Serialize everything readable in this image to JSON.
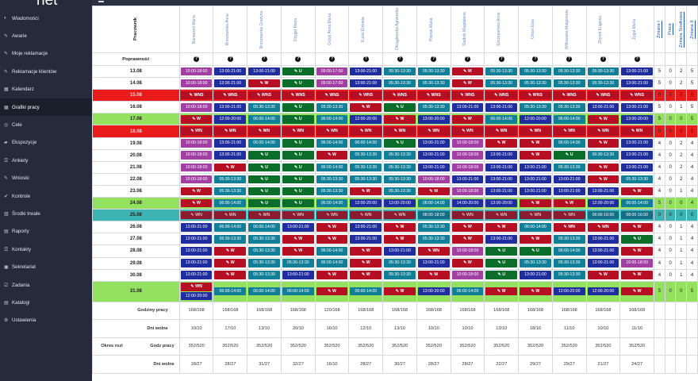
{
  "logo": "net",
  "sidebar": [
    {
      "icon": "gauge-icon",
      "glyph": "◐",
      "label": "Wiadomości"
    },
    {
      "icon": "wrench-icon",
      "glyph": "✎",
      "label": "Awarie"
    },
    {
      "icon": "edit-icon",
      "glyph": "✎",
      "label": "Moje reklamacje"
    },
    {
      "icon": "edit-icon",
      "glyph": "✎",
      "label": "Reklamacje klientów"
    },
    {
      "icon": "calendar-icon",
      "glyph": "▦",
      "label": "Kalendarz"
    },
    {
      "icon": "calendar-icon",
      "glyph": "▦",
      "label": "Grafiki pracy",
      "active": true
    },
    {
      "icon": "target-icon",
      "glyph": "◎",
      "label": "Cele"
    },
    {
      "icon": "car-icon",
      "glyph": "▰",
      "label": "Ekspozycje"
    },
    {
      "icon": "list-icon",
      "glyph": "☰",
      "label": "Ankiety"
    },
    {
      "icon": "edit-icon",
      "glyph": "✎",
      "label": "Wnioski"
    },
    {
      "icon": "check-icon",
      "glyph": "✔",
      "label": "Kontrole"
    },
    {
      "icon": "building-icon",
      "glyph": "▥",
      "label": "Środki trwałe"
    },
    {
      "icon": "chart-icon",
      "glyph": "▤",
      "label": "Raporty"
    },
    {
      "icon": "contacts-icon",
      "glyph": "☰",
      "label": "Kontakty"
    },
    {
      "icon": "briefcase-icon",
      "glyph": "▣",
      "label": "Sekretariat"
    },
    {
      "icon": "tasks-icon",
      "glyph": "☑",
      "label": "Zadania"
    },
    {
      "icon": "folder-icon",
      "glyph": "▤",
      "label": "Katalogi"
    },
    {
      "icon": "gear-icon",
      "glyph": "⚙",
      "label": "Ustawienia"
    }
  ],
  "grid": {
    "pracownik_label": "Pracownik",
    "poprawnosc_label": "Poprawność",
    "question_glyph": "?",
    "employees": [
      "Banaszek Maria",
      "Brzozowska Anna",
      "Brzozowska Grażyna",
      "Dżygeł Maria",
      "Grzyb Anna Maria",
      "Kubis Elżbieta",
      "Okrągłowska Agnieszka",
      "Pitorak Maria",
      "Stadnik Magdalena",
      "Szczepańska Anna",
      "Urban Ewa",
      "Wilkowska Małgorzata",
      "Zbyrek Eugenia",
      "Żygał Maria"
    ],
    "stat_headers": [
      "Zmiana I",
      "Praca",
      "Zmiana Środkowa",
      "Zmiana II"
    ],
    "rows": [
      {
        "date": "13.08",
        "style": "",
        "cells": [
          "1:10:00-18:00",
          "2:13:00-21:00",
          "2:13:00-21:00",
          "5:U",
          "1:09:00-17:00",
          "2:13:00-21:00",
          "3:05:30-13:30",
          "3:05:30-13:30",
          "4:W",
          "3:05:30-13:30",
          "3:05:30-13:30",
          "3:05:30-13:30",
          "3:05:30-13:30",
          "2:13:00-21:00"
        ],
        "stats": [
          "5",
          "0",
          "2",
          "5"
        ]
      },
      {
        "date": "14.08",
        "style": "",
        "cells": [
          "1:10:00-18:00",
          "2:13:00-21:00",
          "4:W",
          "5:U",
          "1:09:00-17:00",
          "2:13:00-21:00",
          "3:05:30-13:30",
          "3:05:30-13:30",
          "4:W",
          "3:05:30-13:30",
          "3:05:30-13:30",
          "3:05:30-13:30",
          "3:05:30-13:30",
          "2:13:00-21:00"
        ],
        "stats": [
          "5",
          "0",
          "2",
          "5"
        ]
      },
      {
        "date": "15.08",
        "style": "red",
        "cells": [
          "4:WNS",
          "4:WNS",
          "4:WNS",
          "4:WNS",
          "4:WNS",
          "4:WNS",
          "4:WNS",
          "4:WNS",
          "4:WNS",
          "4:WNS",
          "4:WNS",
          "4:WNS",
          "4:WNS",
          "4:WNS"
        ],
        "stats": [
          "0",
          "0",
          "0",
          "0"
        ]
      },
      {
        "date": "16.08",
        "style": "",
        "cells": [
          "1:10:00-18:00",
          "2:13:00-21:00",
          "3:05:30-13:30",
          "5:U",
          "3:05:30-13:30",
          "4:W",
          "5:U",
          "3:05:30-13:30",
          "2:13:00-21:00",
          "2:13:00-21:00",
          "3:05:30-13:30",
          "3:05:30-13:30",
          "2:13:00-21:00",
          "2:13:00-21:00"
        ],
        "stats": [
          "5",
          "0",
          "1",
          "5"
        ]
      },
      {
        "date": "17.08",
        "style": "green",
        "cells": [
          "4:W",
          "2:12:00-20:00",
          "3:06:00-14:00",
          "5:U",
          "3:06:00-14:00",
          "2:12:00-20:00",
          "4:W",
          "2:13:00-20:00",
          "4:W",
          "3:06:00-14:00",
          "2:12:00-20:00",
          "3:06:00-14:00",
          "4:W",
          "2:13:00-20:00"
        ],
        "stats": [
          "5",
          "0",
          "0",
          "5"
        ]
      },
      {
        "date": "18.08",
        "style": "red",
        "cells": [
          "4:WN",
          "4:WN",
          "4:WN",
          "4:WN",
          "4:WN",
          "4:WN",
          "4:WN",
          "4:WN",
          "4:WN",
          "4:WN",
          "4:WN",
          "4:WN",
          "4:WN",
          "4:WN"
        ],
        "stats": [
          "0",
          "0",
          "0",
          "0"
        ]
      },
      {
        "date": "19.08",
        "style": "",
        "cells": [
          "1:10:00-18:00",
          "2:13:00-21:00",
          "3:06:00-14:00",
          "5:U",
          "3:06:00-14:00",
          "3:06:00-14:00",
          "5:U",
          "2:13:00-21:00",
          "1:10:00-18:00",
          "4:W",
          "4:W",
          "3:06:00-14:00",
          "4:W",
          "2:13:00-21:00"
        ],
        "stats": [
          "4",
          "0",
          "2",
          "4"
        ]
      },
      {
        "date": "20.08",
        "style": "",
        "cells": [
          "1:10:00-18:00",
          "2:13:00-21:00",
          "5:U",
          "5:U",
          "4:W",
          "3:05:30-13:30",
          "3:05:30-13:30",
          "2:13:00-21:00",
          "1:10:00-18:00",
          "2:13:00-21:00",
          "4:W",
          "5:U",
          "3:05:30-13:30",
          "2:13:00-21:00"
        ],
        "stats": [
          "4",
          "0",
          "2",
          "4"
        ]
      },
      {
        "date": "21.08",
        "style": "",
        "cells": [
          "1:10:00-18:00",
          "4:W",
          "5:U",
          "5:U",
          "3:06:00-14:00",
          "3:05:30-13:30",
          "3:05:30-13:30",
          "2:13:00-21:00",
          "1:10:00-18:00",
          "2:13:00-21:00",
          "2:13:00-21:00",
          "3:05:30-13:30",
          "4:W",
          "2:13:00-21:00"
        ],
        "stats": [
          "4",
          "0",
          "2",
          "4"
        ]
      },
      {
        "date": "22.08",
        "style": "",
        "cells": [
          "1:10:00-18:00",
          "3:05:30-13:30",
          "5:U",
          "5:U",
          "3:05:30-13:30",
          "3:05:30-13:30",
          "3:05:30-13:30",
          "1:10:00-18:00",
          "2:13:00-21:00",
          "2:13:00-21:00",
          "2:13:00-21:00",
          "2:13:00-21:00",
          "4:W",
          "3:05:30-13:30"
        ],
        "stats": [
          "4",
          "0",
          "2",
          "4"
        ]
      },
      {
        "date": "23.08",
        "style": "",
        "cells": [
          "4:W",
          "3:05:30-13:30",
          "5:U",
          "5:U",
          "3:05:30-13:30",
          "4:W",
          "3:05:30-13:30",
          "4:W",
          "1:10:00-18:00",
          "2:13:00-21:00",
          "2:13:00-21:00",
          "2:13:00-21:00",
          "2:13:00-21:00",
          "4:W"
        ],
        "stats": [
          "4",
          "0",
          "1",
          "4"
        ]
      },
      {
        "date": "24.08",
        "style": "green",
        "cells": [
          "4:W",
          "3:06:00-14:00",
          "5:U",
          "5:U",
          "3:06:00-14:00",
          "2:12:00-20:00",
          "2:13:00-20:00",
          "3:06:00-14:00",
          "2:14:00-20:00",
          "2:13:00-20:00",
          "4:W",
          "4:W",
          "2:12:00-20:00",
          "3:06:00-14:00"
        ],
        "stats": [
          "5",
          "0",
          "0",
          "4"
        ]
      },
      {
        "date": "25.08",
        "style": "teal",
        "cells": [
          "6:WN",
          "6:WN",
          "6:WN",
          "6:WN",
          "6:WN",
          "6:WN",
          "6:WN",
          "7:08:00-18:00",
          "6:WN",
          "6:WN",
          "6:WN",
          "6:WN",
          "7:06:00-16:00",
          "7:08:00-16:00"
        ],
        "stats": [
          "0",
          "0",
          "0",
          "0"
        ]
      },
      {
        "date": "26.08",
        "style": "",
        "cells": [
          "2:13:00-21:00",
          "3:06:00-14:00",
          "3:06:00-14:00",
          "2:13:00-21:00",
          "4:W",
          "2:13:00-21:00",
          "4:W",
          "3:05:30-13:30",
          "4:W",
          "4:W",
          "3:06:00-14:00",
          "4:WN",
          "4:WN",
          "4:W"
        ],
        "stats": [
          "4",
          "0",
          "1",
          "4"
        ]
      },
      {
        "date": "27.08",
        "style": "",
        "cells": [
          "2:13:00-21:00",
          "3:05:30-13:30",
          "3:05:30-13:30",
          "4:W",
          "4:W",
          "2:13:00-21:00",
          "4:W",
          "3:05:30-13:30",
          "4:W",
          "2:13:00-21:00",
          "4:W",
          "3:05:30-13:30",
          "2:13:00-21:00",
          "5:U"
        ],
        "stats": [
          "4",
          "0",
          "1",
          "4"
        ]
      },
      {
        "date": "28.08",
        "style": "",
        "cells": [
          "2:13:00-21:00",
          "4:W",
          "3:05:30-13:30",
          "4:W",
          "3:06:00-14:00",
          "4:W",
          "2:13:00-21:00",
          "4:WN",
          "1:10:00-18:00",
          "5:U",
          "5:U",
          "3:06:00-14:00",
          "2:13:00-21:00",
          "4:W"
        ],
        "stats": [
          "4",
          "0",
          "1",
          "4"
        ]
      },
      {
        "date": "29.08",
        "style": "",
        "cells": [
          "2:13:00-21:00",
          "4:W",
          "3:05:30-13:30",
          "3:05:30-13:30",
          "3:06:00-14:00",
          "4:W",
          "3:05:30-13:30",
          "2:13:00-21:00",
          "4:W",
          "5:U",
          "3:05:30-13:30",
          "3:05:30-13:30",
          "2:13:00-21:00",
          "1:10:00-18:00"
        ],
        "stats": [
          "4",
          "0",
          "1",
          "4"
        ]
      },
      {
        "date": "30.08",
        "style": "",
        "cells": [
          "2:13:00-21:00",
          "4:W",
          "3:05:30-13:30",
          "2:13:00-21:00",
          "4:W",
          "4:W",
          "3:05:30-13:30",
          "4:W",
          "1:10:00-18:00",
          "5:U",
          "2:13:00-21:00",
          "3:05:30-13:30",
          "4:W",
          "4:W"
        ],
        "stats": [
          "4",
          "0",
          "1",
          "4"
        ]
      },
      {
        "date": "31.08",
        "style": "green tall",
        "cells": [
          "4:WN|2:12:00-20:00",
          "3:06:00-14:00",
          "3:06:00-14:00",
          "3:06:00-14:00",
          "4:W",
          "3:06:00-14:00",
          "4:W",
          "2:13:00-20:00",
          "3:06:00-14:00",
          "4:W",
          "4:W",
          "2:12:00-20:00",
          "2:12:00-20:00",
          "4:W"
        ],
        "stats": [
          "5",
          "0",
          "0",
          "5"
        ]
      }
    ],
    "summary": {
      "godziny_label": "Godziny pracy",
      "godziny": [
        "168/168",
        "168/168",
        "168/168",
        "168/168",
        "120/168",
        "168/168",
        "168/168",
        "168/168",
        "168/168",
        "168/168",
        "168/168",
        "168/168",
        "168/168",
        "168/168"
      ],
      "dni_label": "Dni wolne",
      "dni": [
        "10/10",
        "17/10",
        "13/10",
        "20/10",
        "16/10",
        "12/10",
        "13/10",
        "10/10",
        "10/10",
        "13/10",
        "18/10",
        "11/10",
        "10/10",
        "11/10"
      ],
      "okres_label": "Okres rozl",
      "okres_godz_label": "Godz pracy",
      "okres_godz": [
        "352/520",
        "352/520",
        "352/520",
        "352/520",
        "352/520",
        "352/520",
        "352/520",
        "352/520",
        "352/520",
        "352/520",
        "352/520",
        "352/520",
        "352/520",
        "352/520"
      ],
      "okres_dni_label": "Dni wolne",
      "okres_dni": [
        "18/27",
        "28/27",
        "31/27",
        "32/27",
        "16/10",
        "28/27",
        "30/27",
        "28/27",
        "28/27",
        "22/27",
        "29/27",
        "29/27",
        "21/27",
        "24/27"
      ]
    }
  }
}
